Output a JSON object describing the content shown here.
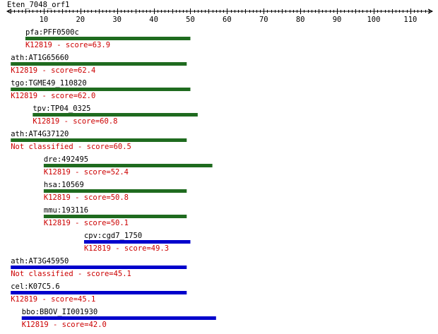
{
  "title": "Eten_7048_orf1",
  "axis": {
    "min": 0,
    "max": 116,
    "tick_labels": [
      "10",
      "20",
      "30",
      "40",
      "50",
      "60",
      "70",
      "80",
      "90",
      "100",
      "110"
    ]
  },
  "colors": {
    "axis": "#000000",
    "gene_name": "#000000",
    "score_text": "#cc0000",
    "bar_green": "#1f6b1f",
    "bar_blue": "#0000cc"
  },
  "hits": [
    {
      "name": "pfa:PFF0500c",
      "annotation": "K12819 - score=63.9",
      "start": 5,
      "end": 50,
      "color": "green"
    },
    {
      "name": "ath:AT1G65660",
      "annotation": "K12819 - score=62.4",
      "start": 1,
      "end": 49,
      "color": "green"
    },
    {
      "name": "tgo:TGME49_110820",
      "annotation": "K12819 - score=62.0",
      "start": 1,
      "end": 50,
      "color": "green"
    },
    {
      "name": "tpv:TP04_0325",
      "annotation": "K12819 - score=60.8",
      "start": 7,
      "end": 52,
      "color": "green"
    },
    {
      "name": "ath:AT4G37120",
      "annotation": "Not classified - score=60.5",
      "start": 1,
      "end": 49,
      "color": "green"
    },
    {
      "name": "dre:492495",
      "annotation": "K12819 - score=52.4",
      "start": 10,
      "end": 56,
      "color": "green"
    },
    {
      "name": "hsa:10569",
      "annotation": "K12819 - score=50.8",
      "start": 10,
      "end": 49,
      "color": "green"
    },
    {
      "name": "mmu:193116",
      "annotation": "K12819 - score=50.1",
      "start": 10,
      "end": 49,
      "color": "green"
    },
    {
      "name": "cpv:cgd7_1750",
      "annotation": "K12819 - score=49.3",
      "start": 21,
      "end": 50,
      "color": "blue"
    },
    {
      "name": "ath:AT3G45950",
      "annotation": "Not classified - score=45.1",
      "start": 1,
      "end": 49,
      "color": "blue"
    },
    {
      "name": "cel:K07C5.6",
      "annotation": "K12819 - score=45.1",
      "start": 1,
      "end": 49,
      "color": "blue"
    },
    {
      "name": "bbo:BBOV_II001930",
      "annotation": "K12819 - score=42.0",
      "start": 4,
      "end": 57,
      "color": "blue"
    }
  ]
}
